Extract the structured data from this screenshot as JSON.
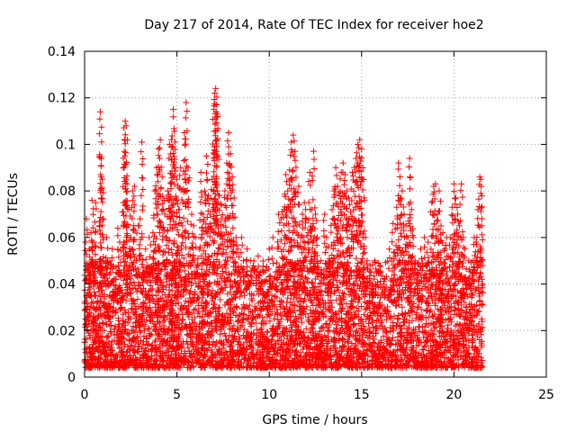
{
  "chart_data": {
    "type": "scatter",
    "title": "Day 217 of 2014, Rate Of TEC Index for receiver hoe2",
    "xlabel": "GPS time / hours",
    "ylabel": "ROTI / TECUs",
    "xlim": [
      0,
      25
    ],
    "ylim": [
      0,
      0.14
    ],
    "xticks": [
      0,
      5,
      10,
      15,
      20,
      25
    ],
    "xtick_labels": [
      "0",
      "5",
      "10",
      "15",
      "20",
      "25"
    ],
    "yticks": [
      0,
      0.02,
      0.04,
      0.06,
      0.08,
      0.1,
      0.12,
      0.14
    ],
    "ytick_labels": [
      "0",
      "0.02",
      "0.04",
      "0.06",
      "0.08",
      "0.1",
      "0.12",
      "0.14"
    ],
    "grid": true,
    "marker": "plus",
    "color": "#ff0000",
    "series": [
      {
        "points": [
          [
            0.0,
            0.015
          ],
          [
            0.05,
            0.025
          ],
          [
            0.1,
            0.068
          ],
          [
            0.15,
            0.02
          ],
          [
            0.2,
            0.045
          ],
          [
            0.25,
            0.055
          ],
          [
            0.3,
            0.03
          ],
          [
            0.35,
            0.062
          ],
          [
            0.4,
            0.076
          ],
          [
            0.45,
            0.02
          ],
          [
            0.5,
            0.058
          ],
          [
            0.55,
            0.035
          ],
          [
            0.6,
            0.075
          ],
          [
            0.7,
            0.04
          ],
          [
            0.8,
            0.065
          ],
          [
            0.85,
            0.114
          ],
          [
            0.9,
            0.094
          ],
          [
            0.95,
            0.085
          ],
          [
            1.0,
            0.05
          ],
          [
            1.1,
            0.03
          ],
          [
            1.2,
            0.06
          ],
          [
            1.3,
            0.025
          ],
          [
            1.4,
            0.045
          ],
          [
            1.5,
            0.055
          ],
          [
            1.6,
            0.035
          ],
          [
            1.7,
            0.042
          ],
          [
            1.8,
            0.064
          ],
          [
            1.9,
            0.058
          ],
          [
            2.0,
            0.03
          ],
          [
            2.1,
            0.075
          ],
          [
            2.15,
            0.097
          ],
          [
            2.2,
            0.11
          ],
          [
            2.25,
            0.108
          ],
          [
            2.3,
            0.083
          ],
          [
            2.4,
            0.072
          ],
          [
            2.5,
            0.06
          ],
          [
            2.6,
            0.08
          ],
          [
            2.7,
            0.082
          ],
          [
            2.8,
            0.05
          ],
          [
            2.9,
            0.065
          ],
          [
            3.0,
            0.068
          ],
          [
            3.1,
            0.101
          ],
          [
            3.2,
            0.045
          ],
          [
            3.3,
            0.055
          ],
          [
            3.4,
            0.035
          ],
          [
            3.5,
            0.06
          ],
          [
            3.6,
            0.045
          ],
          [
            3.7,
            0.062
          ],
          [
            3.8,
            0.08
          ],
          [
            3.9,
            0.09
          ],
          [
            4.0,
            0.098
          ],
          [
            4.1,
            0.102
          ],
          [
            4.2,
            0.086
          ],
          [
            4.3,
            0.076
          ],
          [
            4.4,
            0.06
          ],
          [
            4.5,
            0.08
          ],
          [
            4.6,
            0.1
          ],
          [
            4.7,
            0.102
          ],
          [
            4.75,
            0.099
          ],
          [
            4.8,
            0.115
          ],
          [
            4.9,
            0.101
          ],
          [
            5.0,
            0.085
          ],
          [
            5.1,
            0.072
          ],
          [
            5.2,
            0.09
          ],
          [
            5.3,
            0.065
          ],
          [
            5.4,
            0.105
          ],
          [
            5.5,
            0.118
          ],
          [
            5.6,
            0.09
          ],
          [
            5.7,
            0.055
          ],
          [
            5.8,
            0.07
          ],
          [
            5.9,
            0.065
          ],
          [
            6.0,
            0.06
          ],
          [
            6.2,
            0.055
          ],
          [
            6.3,
            0.088
          ],
          [
            6.4,
            0.07
          ],
          [
            6.5,
            0.08
          ],
          [
            6.6,
            0.095
          ],
          [
            6.7,
            0.078
          ],
          [
            6.8,
            0.07
          ],
          [
            6.9,
            0.085
          ],
          [
            7.0,
            0.115
          ],
          [
            7.05,
            0.122
          ],
          [
            7.1,
            0.124
          ],
          [
            7.15,
            0.117
          ],
          [
            7.2,
            0.112
          ],
          [
            7.3,
            0.078
          ],
          [
            7.4,
            0.074
          ],
          [
            7.5,
            0.065
          ],
          [
            7.6,
            0.08
          ],
          [
            7.7,
            0.092
          ],
          [
            7.8,
            0.105
          ],
          [
            7.9,
            0.096
          ],
          [
            8.0,
            0.086
          ],
          [
            8.1,
            0.077
          ],
          [
            8.2,
            0.06
          ],
          [
            8.3,
            0.055
          ],
          [
            8.4,
            0.045
          ],
          [
            8.5,
            0.06
          ],
          [
            8.6,
            0.05
          ],
          [
            8.8,
            0.055
          ],
          [
            9.0,
            0.05
          ],
          [
            9.2,
            0.045
          ],
          [
            9.4,
            0.052
          ],
          [
            9.5,
            0.04
          ],
          [
            9.7,
            0.045
          ],
          [
            9.8,
            0.035
          ],
          [
            10.0,
            0.055
          ],
          [
            10.2,
            0.06
          ],
          [
            10.5,
            0.07
          ],
          [
            10.7,
            0.071
          ],
          [
            10.8,
            0.072
          ],
          [
            10.9,
            0.087
          ],
          [
            11.0,
            0.08
          ],
          [
            11.1,
            0.089
          ],
          [
            11.2,
            0.101
          ],
          [
            11.3,
            0.104
          ],
          [
            11.4,
            0.097
          ],
          [
            11.5,
            0.065
          ],
          [
            11.6,
            0.082
          ],
          [
            11.7,
            0.06
          ],
          [
            11.8,
            0.07
          ],
          [
            11.9,
            0.075
          ],
          [
            12.0,
            0.068
          ],
          [
            12.1,
            0.062
          ],
          [
            12.2,
            0.088
          ],
          [
            12.3,
            0.072
          ],
          [
            12.4,
            0.097
          ],
          [
            12.5,
            0.07
          ],
          [
            12.6,
            0.06
          ],
          [
            12.8,
            0.05
          ],
          [
            13.0,
            0.07
          ],
          [
            13.1,
            0.06
          ],
          [
            13.2,
            0.056
          ],
          [
            13.3,
            0.05
          ],
          [
            13.4,
            0.072
          ],
          [
            13.5,
            0.08
          ],
          [
            13.6,
            0.09
          ],
          [
            13.7,
            0.082
          ],
          [
            13.8,
            0.078
          ],
          [
            13.9,
            0.088
          ],
          [
            14.0,
            0.092
          ],
          [
            14.1,
            0.087
          ],
          [
            14.2,
            0.08
          ],
          [
            14.3,
            0.077
          ],
          [
            14.4,
            0.071
          ],
          [
            14.5,
            0.088
          ],
          [
            14.6,
            0.09
          ],
          [
            14.7,
            0.094
          ],
          [
            14.8,
            0.1
          ],
          [
            14.9,
            0.102
          ],
          [
            15.0,
            0.098
          ],
          [
            15.1,
            0.085
          ],
          [
            15.2,
            0.06
          ],
          [
            15.3,
            0.05
          ],
          [
            15.5,
            0.045
          ],
          [
            15.7,
            0.05
          ],
          [
            16.0,
            0.045
          ],
          [
            16.2,
            0.04
          ],
          [
            16.5,
            0.055
          ],
          [
            16.7,
            0.066
          ],
          [
            16.9,
            0.073
          ],
          [
            17.0,
            0.092
          ],
          [
            17.1,
            0.077
          ],
          [
            17.2,
            0.08
          ],
          [
            17.3,
            0.07
          ],
          [
            17.4,
            0.065
          ],
          [
            17.5,
            0.06
          ],
          [
            17.6,
            0.094
          ],
          [
            17.7,
            0.072
          ],
          [
            17.8,
            0.06
          ],
          [
            17.9,
            0.05
          ],
          [
            18.0,
            0.045
          ],
          [
            18.2,
            0.055
          ],
          [
            18.4,
            0.06
          ],
          [
            18.6,
            0.058
          ],
          [
            18.8,
            0.075
          ],
          [
            18.9,
            0.082
          ],
          [
            19.0,
            0.083
          ],
          [
            19.1,
            0.07
          ],
          [
            19.2,
            0.08
          ],
          [
            19.3,
            0.065
          ],
          [
            19.4,
            0.062
          ],
          [
            19.5,
            0.055
          ],
          [
            19.6,
            0.06
          ],
          [
            19.7,
            0.052
          ],
          [
            19.8,
            0.06
          ],
          [
            19.9,
            0.073
          ],
          [
            20.0,
            0.083
          ],
          [
            20.1,
            0.077
          ],
          [
            20.2,
            0.07
          ],
          [
            20.3,
            0.065
          ],
          [
            20.4,
            0.083
          ],
          [
            20.5,
            0.06
          ],
          [
            20.6,
            0.055
          ],
          [
            20.8,
            0.05
          ],
          [
            21.0,
            0.045
          ],
          [
            21.1,
            0.06
          ],
          [
            21.2,
            0.058
          ],
          [
            21.3,
            0.072
          ],
          [
            21.4,
            0.086
          ],
          [
            21.45,
            0.085
          ],
          [
            21.5,
            0.065
          ],
          [
            21.55,
            0.04
          ]
        ],
        "bulk_range": [
          0.004,
          0.05
        ],
        "bulk_density_per_hour": 220
      }
    ]
  }
}
